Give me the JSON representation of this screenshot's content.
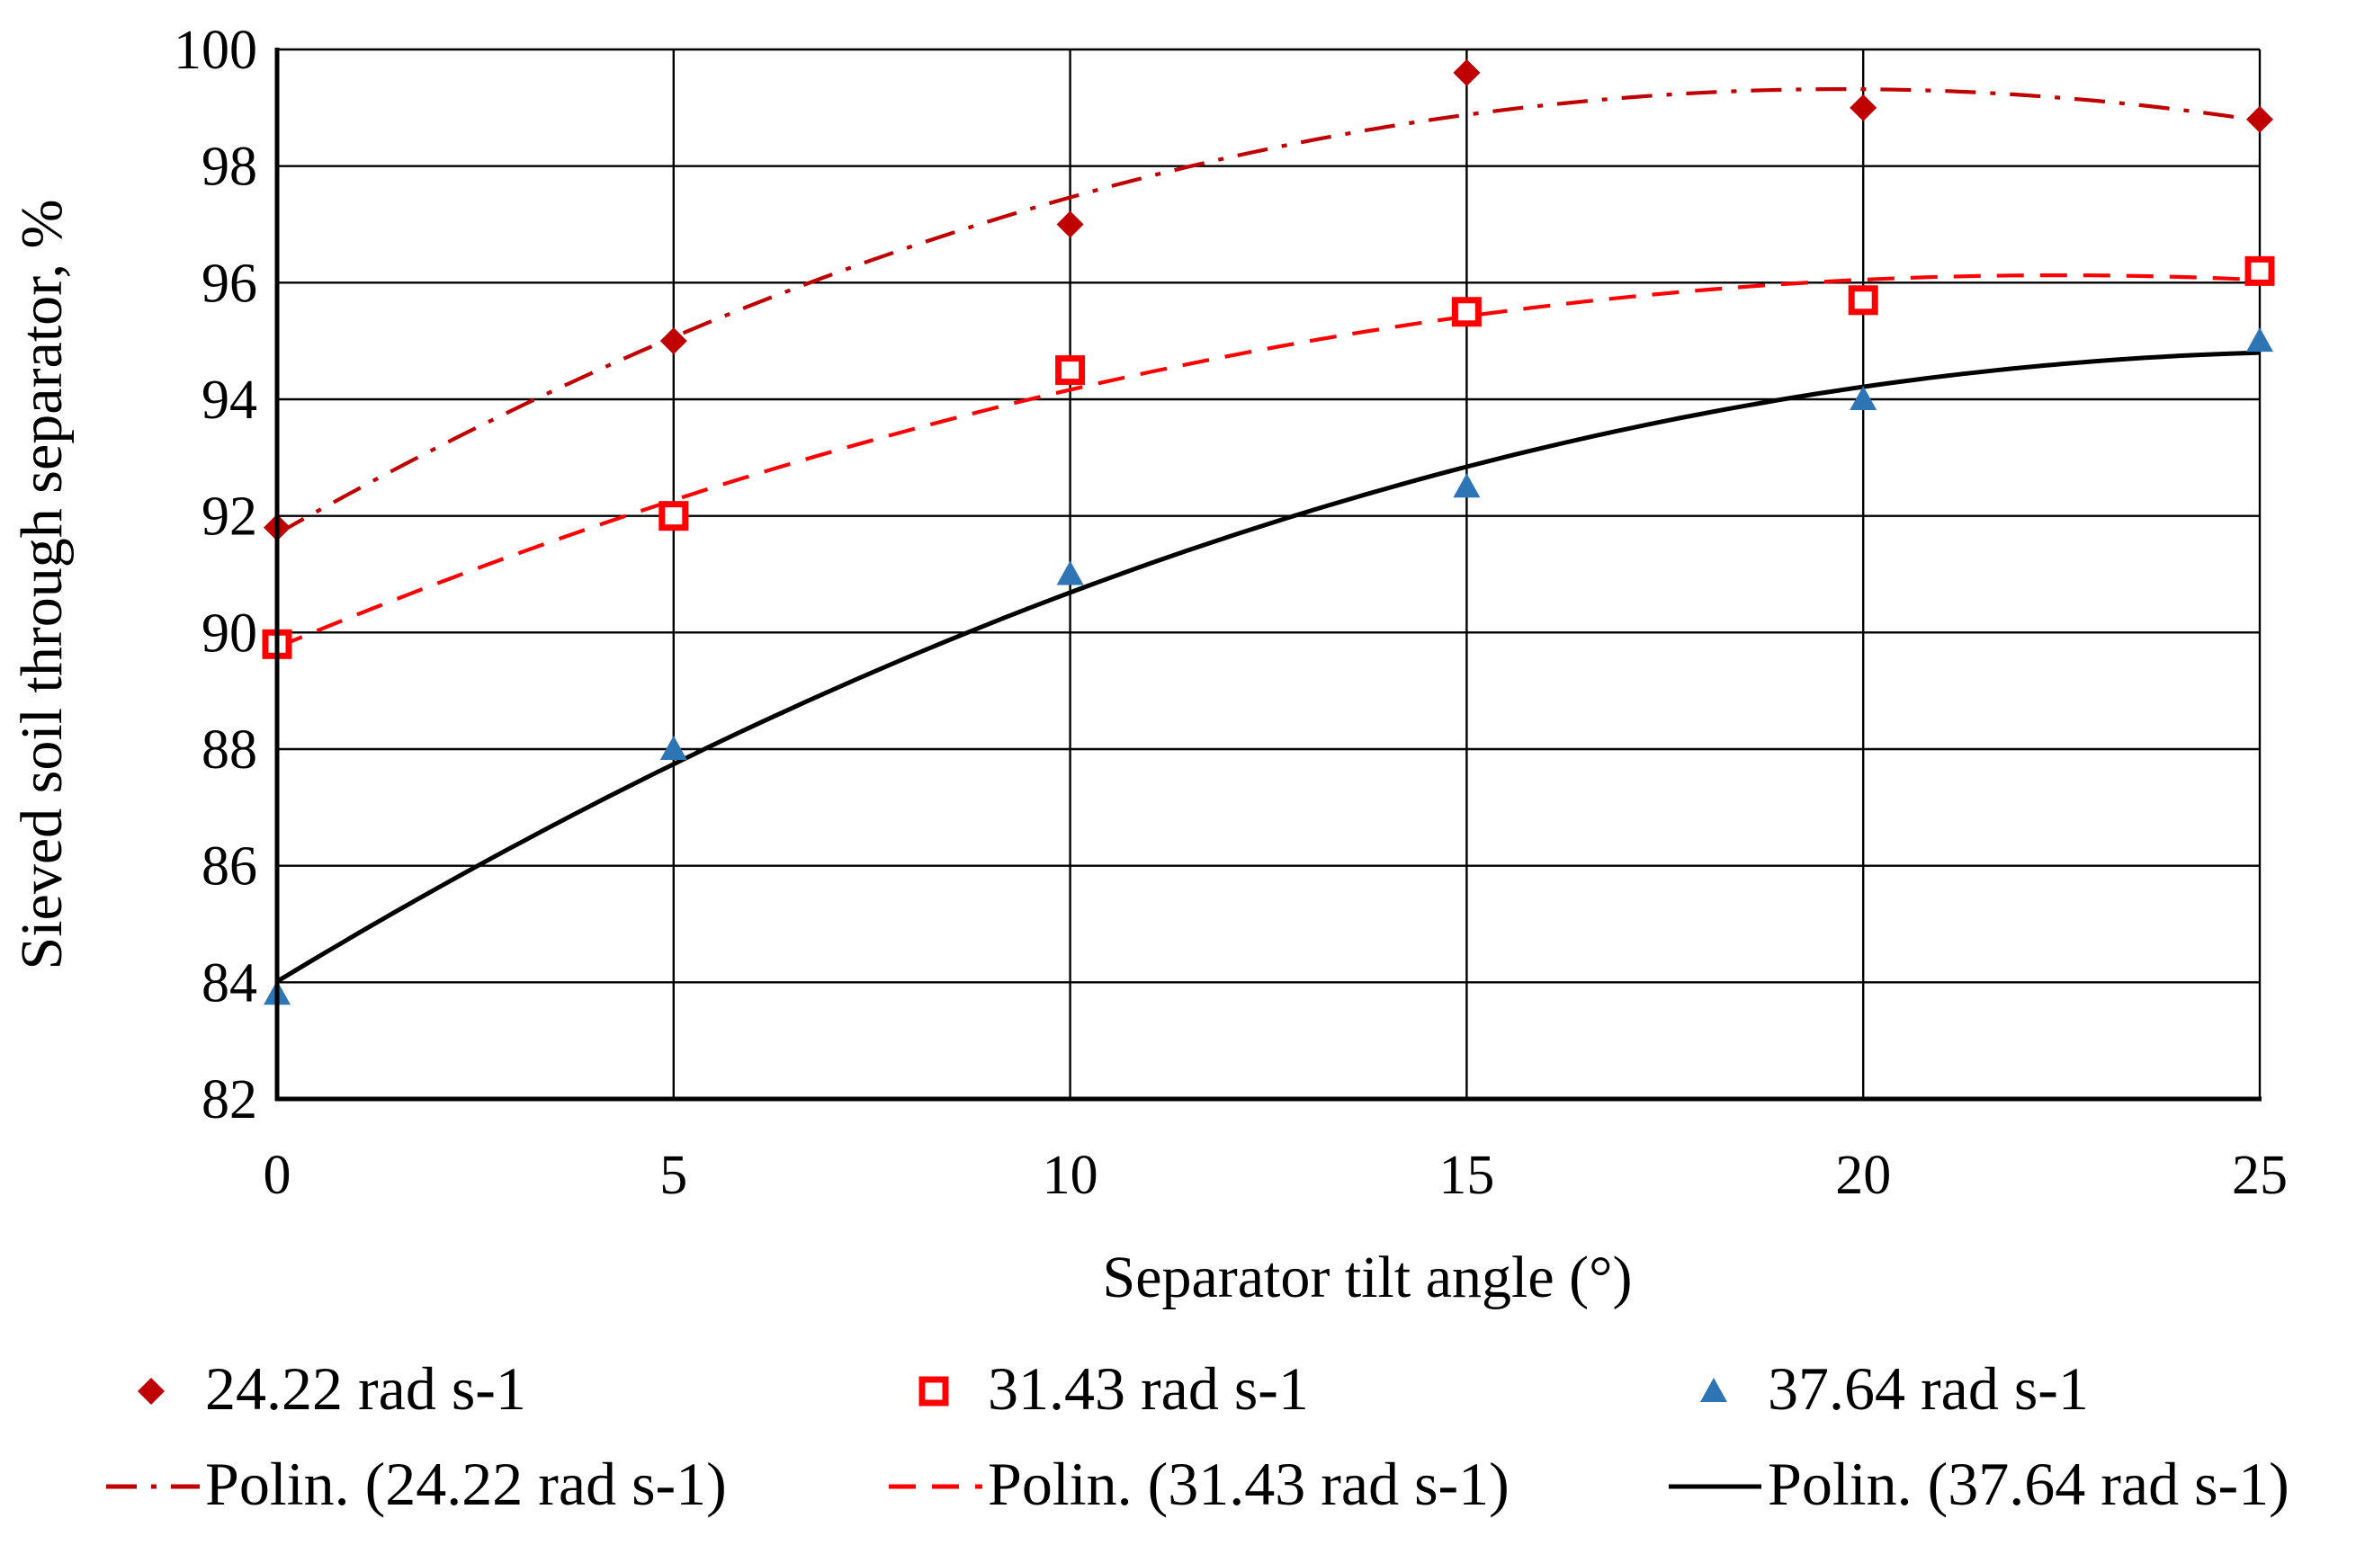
{
  "chart_data": {
    "type": "scatter",
    "title": "",
    "xlabel": "Separator tilt angle (°)",
    "ylabel": "Sieved soil through separator, %",
    "x": [
      0,
      5,
      10,
      15,
      20,
      25
    ],
    "xticks": [
      0,
      5,
      10,
      15,
      20,
      25
    ],
    "xtick_labels": [
      "0",
      "5",
      "10",
      "15",
      "20",
      "25"
    ],
    "yticks": [
      82,
      84,
      86,
      88,
      90,
      92,
      94,
      96,
      98,
      100
    ],
    "ytick_labels": [
      "82",
      "84",
      "86",
      "88",
      "90",
      "92",
      "94",
      "96",
      "98",
      "100"
    ],
    "xlim": [
      0,
      25
    ],
    "ylim": [
      82,
      100
    ],
    "grid": true,
    "legend_position": "bottom",
    "series": [
      {
        "name": "24.22 rad s-1",
        "marker": "diamond",
        "color": "#c00000",
        "values": [
          91.8,
          95.0,
          97.0,
          99.6,
          99.0,
          98.8
        ]
      },
      {
        "name": "31.43 rad s-1",
        "marker": "square",
        "color": "#ff0000",
        "values": [
          89.8,
          92.0,
          94.5,
          95.5,
          95.7,
          96.2
        ]
      },
      {
        "name": "37.64 rad s-1",
        "marker": "triangle",
        "color": "#2e75b6",
        "values": [
          83.8,
          88.0,
          91.0,
          92.5,
          94.0,
          95.0
        ]
      }
    ],
    "trendlines": [
      {
        "name": "Polin. (24.22 rad s-1)",
        "type": "polynomial",
        "style": "dash-dot",
        "color": "#c00000"
      },
      {
        "name": "Polin. (31.43 rad s-1)",
        "type": "polynomial",
        "style": "dashed",
        "color": "#ff0000"
      },
      {
        "name": "Polin. (37.64 rad s-1)",
        "type": "polynomial",
        "style": "solid",
        "color": "#000000"
      }
    ]
  }
}
